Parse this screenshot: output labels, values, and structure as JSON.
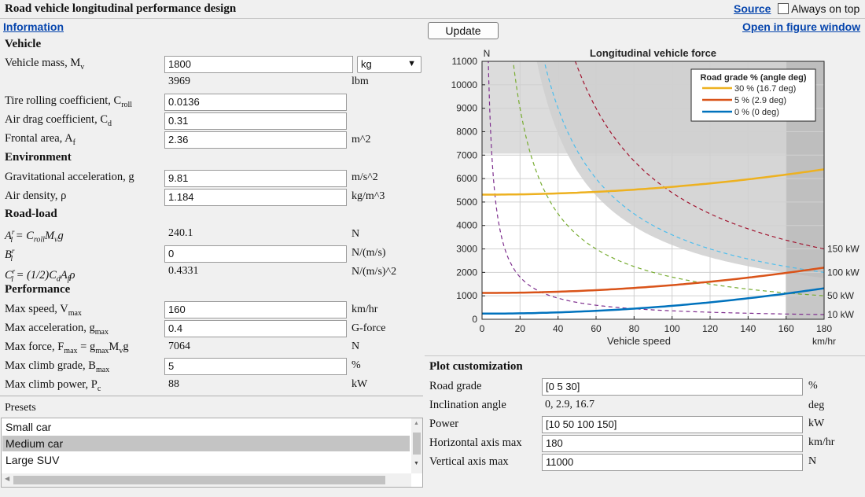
{
  "app": {
    "title": "Road vehicle longitudinal performance design",
    "source_link": "Source",
    "always_on_top_label": "Always on top",
    "information_link": "Information",
    "update_button": "Update",
    "figure_window_link": "Open in figure window"
  },
  "vehicle": {
    "heading": "Vehicle",
    "mass_label": "Vehicle mass, M",
    "mass_sub": "v",
    "mass_value": "1800",
    "mass_unit_selected": "kg",
    "mass_lbm": "3969",
    "mass_lbm_unit": "lbm",
    "croll_label": "Tire rolling coefficient, C",
    "croll_sub": "roll",
    "croll_value": "0.0136",
    "cd_label": "Air drag coefficient, C",
    "cd_sub": "d",
    "cd_value": "0.31",
    "af_label": "Frontal area, A",
    "af_sub": "f",
    "af_value": "2.36",
    "af_unit": "m^2"
  },
  "environment": {
    "heading": "Environment",
    "g_label": "Gravitational acceleration, g",
    "g_value": "9.81",
    "g_unit": "m/s^2",
    "rho_label": "Air density, ρ",
    "rho_value": "1.184",
    "rho_unit": "kg/m^3"
  },
  "roadload": {
    "heading": "Road-load",
    "a_label": "A",
    "a_formula": " = C",
    "a_formula_sub": "roll",
    "a_formula_rest": "M",
    "a_formula_sub2": "v",
    "a_formula_end": "g",
    "a_value": "240.1",
    "a_unit": "N",
    "b_label": "B",
    "b_value": "0",
    "b_unit": "N/(m/s)",
    "c_label": "C",
    "c_formula": " = (1/2)C",
    "c_formula_sub": "d",
    "c_formula_mid": "A",
    "c_formula_sub2": "f",
    "c_formula_end": "ρ",
    "c_value": "0.4331",
    "c_unit": "N/(m/s)^2",
    "sup": "r",
    "sub": "l"
  },
  "performance": {
    "heading": "Performance",
    "vmax_label": "Max speed, V",
    "vmax_sub": "max",
    "vmax_value": "160",
    "vmax_unit": "km/hr",
    "gmax_label": "Max acceleration, g",
    "gmax_sub": "max",
    "gmax_value": "0.4",
    "gmax_unit": "G-force",
    "fmax_label": "Max force, F",
    "fmax_sub": "max",
    "fmax_eq": " = g",
    "fmax_eq_sub": "max",
    "fmax_eq_m": "M",
    "fmax_eq_sub2": "v",
    "fmax_eq_end": "g",
    "fmax_value": "7064",
    "fmax_unit": "N",
    "bmax_label": "Max climb grade, B",
    "bmax_sub": "max",
    "bmax_value": "5",
    "bmax_unit": "%",
    "pc_label": "Max climb power, P",
    "pc_sub": "c",
    "pc_value": "88",
    "pc_unit": "kW"
  },
  "presets": {
    "heading": "Presets",
    "items": [
      "Small car",
      "Medium car",
      "Large SUV"
    ],
    "selected_index": 1
  },
  "plot_custom": {
    "heading": "Plot customization",
    "grade_label": "Road grade",
    "grade_value": "[0 5 30]",
    "grade_unit": "%",
    "incl_label": "Inclination angle",
    "incl_value": "0, 2.9, 16.7",
    "incl_unit": "deg",
    "power_label": "Power",
    "power_value": "[10 50 100 150]",
    "power_unit": "kW",
    "hmax_label": "Horizontal axis max",
    "hmax_value": "180",
    "hmax_unit": "km/hr",
    "vmax_label": "Vertical axis max",
    "vmax_value": "11000",
    "vmax_unit": "N"
  },
  "chart_data": {
    "type": "line",
    "title": "Longitudinal vehicle force",
    "xlabel": "Vehicle speed",
    "xunit": "km/hr",
    "yunit": "N",
    "xlim": [
      0,
      180
    ],
    "ylim": [
      0,
      11000
    ],
    "xticks": [
      0,
      20,
      40,
      60,
      80,
      100,
      120,
      140,
      160,
      180
    ],
    "yticks": [
      0,
      1000,
      2000,
      3000,
      4000,
      5000,
      6000,
      7000,
      8000,
      9000,
      10000,
      11000
    ],
    "legend_title": "Road grade % (angle deg)",
    "legend_placement": "top-right",
    "road_load": {
      "A": 240.1,
      "B": 0,
      "C": 0.4331,
      "mass": 1800,
      "g": 9.81
    },
    "grade_series": [
      {
        "name": "30 % (16.7 deg)",
        "grade_pct": 30,
        "color": "#edb120"
      },
      {
        "name": "5 % (2.9 deg)",
        "grade_pct": 5,
        "color": "#d95319"
      },
      {
        "name": "0 % (0 deg)",
        "grade_pct": 0,
        "color": "#0072bd"
      }
    ],
    "power_series": [
      {
        "label": "10 kW",
        "kw": 10,
        "color": "#7e2f8e"
      },
      {
        "label": "50 kW",
        "kw": 50,
        "color": "#77ac30"
      },
      {
        "label": "100 kW",
        "kw": 100,
        "color": "#4dbeee"
      },
      {
        "label": "150 kW",
        "kw": 150,
        "color": "#a2142f"
      }
    ],
    "max_force": 7064,
    "max_speed": 160,
    "max_power_kw": 88,
    "shade_colors": {
      "fmax": "#dcdcdc",
      "power": "#cfcfcf",
      "speed": "#b9b9b9"
    }
  }
}
